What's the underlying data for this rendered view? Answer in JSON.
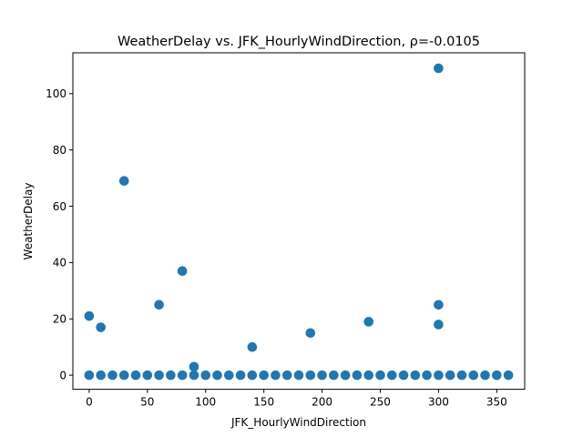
{
  "chart_data": {
    "type": "scatter",
    "title": "WeatherDelay vs. JFK_HourlyWindDirection, ρ=-0.0105",
    "xlabel": "JFK_HourlyWindDirection",
    "ylabel": "WeatherDelay",
    "xlim": [
      -14,
      374
    ],
    "ylim": [
      -5,
      114.5
    ],
    "xticks": [
      0,
      50,
      100,
      150,
      200,
      250,
      300,
      350
    ],
    "yticks": [
      0,
      20,
      40,
      60,
      80,
      100
    ],
    "grid": false,
    "legend": "none",
    "marker_color": "#1f77b4",
    "points": [
      {
        "x": 0,
        "y": 0
      },
      {
        "x": 10,
        "y": 0
      },
      {
        "x": 20,
        "y": 0
      },
      {
        "x": 30,
        "y": 0
      },
      {
        "x": 40,
        "y": 0
      },
      {
        "x": 50,
        "y": 0
      },
      {
        "x": 60,
        "y": 0
      },
      {
        "x": 70,
        "y": 0
      },
      {
        "x": 80,
        "y": 0
      },
      {
        "x": 90,
        "y": 0
      },
      {
        "x": 100,
        "y": 0
      },
      {
        "x": 110,
        "y": 0
      },
      {
        "x": 120,
        "y": 0
      },
      {
        "x": 130,
        "y": 0
      },
      {
        "x": 140,
        "y": 0
      },
      {
        "x": 150,
        "y": 0
      },
      {
        "x": 160,
        "y": 0
      },
      {
        "x": 170,
        "y": 0
      },
      {
        "x": 180,
        "y": 0
      },
      {
        "x": 190,
        "y": 0
      },
      {
        "x": 200,
        "y": 0
      },
      {
        "x": 210,
        "y": 0
      },
      {
        "x": 220,
        "y": 0
      },
      {
        "x": 230,
        "y": 0
      },
      {
        "x": 240,
        "y": 0
      },
      {
        "x": 250,
        "y": 0
      },
      {
        "x": 260,
        "y": 0
      },
      {
        "x": 270,
        "y": 0
      },
      {
        "x": 280,
        "y": 0
      },
      {
        "x": 290,
        "y": 0
      },
      {
        "x": 300,
        "y": 0
      },
      {
        "x": 310,
        "y": 0
      },
      {
        "x": 320,
        "y": 0
      },
      {
        "x": 330,
        "y": 0
      },
      {
        "x": 340,
        "y": 0
      },
      {
        "x": 350,
        "y": 0
      },
      {
        "x": 360,
        "y": 0
      },
      {
        "x": 0,
        "y": 21
      },
      {
        "x": 10,
        "y": 17
      },
      {
        "x": 30,
        "y": 69
      },
      {
        "x": 60,
        "y": 25
      },
      {
        "x": 80,
        "y": 37
      },
      {
        "x": 90,
        "y": 3
      },
      {
        "x": 140,
        "y": 10
      },
      {
        "x": 190,
        "y": 15
      },
      {
        "x": 240,
        "y": 19
      },
      {
        "x": 300,
        "y": 109
      },
      {
        "x": 300,
        "y": 25
      },
      {
        "x": 300,
        "y": 18
      }
    ]
  }
}
